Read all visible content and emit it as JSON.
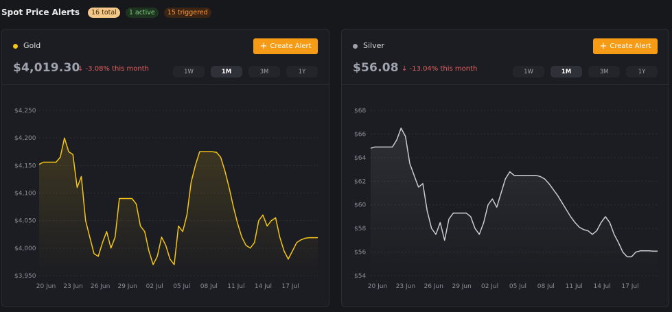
{
  "header": {
    "title": "Spot Price Alerts",
    "badge_total": "16 total",
    "badge_active": "1 active",
    "badge_triggered": "15 triggered"
  },
  "colors": {
    "gold": "#f5c518",
    "silver": "#c9ccd1",
    "accent": "#f59b16",
    "negative": "#e0625f"
  },
  "cards": [
    {
      "name": "Gold",
      "price": "$4,019.30",
      "change": "↓ -3.08% this month",
      "create_label": "Create Alert",
      "ranges": [
        "1W",
        "1M",
        "3M",
        "1Y"
      ],
      "active_range": "1M"
    },
    {
      "name": "Silver",
      "price": "$56.08",
      "change": "↓ -13.04% this month",
      "create_label": "Create Alert",
      "ranges": [
        "1W",
        "1M",
        "3M",
        "1Y"
      ],
      "active_range": "1M"
    }
  ],
  "chart_data": [
    {
      "type": "area",
      "series": [
        {
          "name": "Gold",
          "values": [
            4152,
            4156,
            4156,
            4156,
            4156,
            4165,
            4200,
            4175,
            4170,
            4110,
            4130,
            4050,
            4020,
            3990,
            3985,
            4010,
            4030,
            4000,
            4020,
            4090,
            4090,
            4090,
            4090,
            4080,
            4040,
            4030,
            3995,
            3970,
            3985,
            4020,
            4005,
            3980,
            3970,
            4040,
            4030,
            4060,
            4120,
            4150,
            4175,
            4175,
            4175,
            4175,
            4174,
            4165,
            4140,
            4110,
            4075,
            4045,
            4020,
            4005,
            4000,
            4010,
            4050,
            4060,
            4040,
            4050,
            4055,
            4020,
            3995,
            3980,
            3995,
            4010,
            4015,
            4018,
            4019,
            4019,
            4019
          ]
        }
      ],
      "x": [
        "20 Jun",
        "",
        "",
        "",
        "",
        "",
        "23 Jun",
        "",
        "",
        "",
        "",
        "",
        "26 Jun",
        "",
        "",
        "",
        "",
        "",
        "29 Jun",
        "",
        "",
        "",
        "",
        "",
        "02 Jul",
        "",
        "",
        "",
        "",
        "",
        "05 Jul",
        "",
        "",
        "",
        "",
        "",
        "08 Jul",
        "",
        "",
        "",
        "",
        "",
        "11 Jul",
        "",
        "",
        "",
        "",
        "",
        "14 Jul",
        "",
        "",
        "",
        "",
        "",
        "17 Jul",
        "",
        "",
        "",
        "",
        "",
        "",
        "",
        "",
        "",
        "",
        "",
        ""
      ],
      "x_ticks": [
        "20 Jun",
        "23 Jun",
        "26 Jun",
        "29 Jun",
        "02 Jul",
        "05 Jul",
        "08 Jul",
        "11 Jul",
        "14 Jul",
        "17 Jul"
      ],
      "y_ticks": [
        "$4,250",
        "$4,200",
        "$4,150",
        "$4,100",
        "$4,050",
        "$4,000",
        "$3,950"
      ],
      "ylim": [
        3950,
        4250
      ],
      "grid": true
    },
    {
      "type": "area",
      "series": [
        {
          "name": "Silver",
          "values": [
            64.8,
            64.9,
            64.9,
            64.9,
            64.9,
            64.9,
            65.5,
            66.5,
            65.8,
            63.5,
            62.5,
            61.5,
            61.8,
            59.5,
            58.0,
            57.5,
            58.5,
            57.0,
            58.8,
            59.3,
            59.3,
            59.3,
            59.3,
            59.0,
            58.0,
            57.5,
            58.5,
            60.0,
            60.5,
            59.8,
            61.0,
            62.2,
            62.8,
            62.5,
            62.5,
            62.5,
            62.5,
            62.5,
            62.5,
            62.4,
            62.2,
            61.8,
            61.3,
            60.8,
            60.2,
            59.6,
            59.0,
            58.5,
            58.1,
            57.9,
            57.8,
            57.5,
            57.8,
            58.5,
            59.0,
            58.5,
            57.5,
            56.8,
            56.0,
            55.6,
            55.6,
            56.0,
            56.1,
            56.1,
            56.1,
            56.08,
            56.08
          ]
        }
      ],
      "x_ticks": [
        "20 Jun",
        "23 Jun",
        "26 Jun",
        "29 Jun",
        "02 Jul",
        "05 Jul",
        "08 Jul",
        "11 Jul",
        "14 Jul",
        "17 Jul"
      ],
      "y_ticks": [
        "$68",
        "$66",
        "$64",
        "$62",
        "$60",
        "$58",
        "$56",
        "$54"
      ],
      "ylim": [
        54,
        68
      ],
      "grid": true
    }
  ]
}
